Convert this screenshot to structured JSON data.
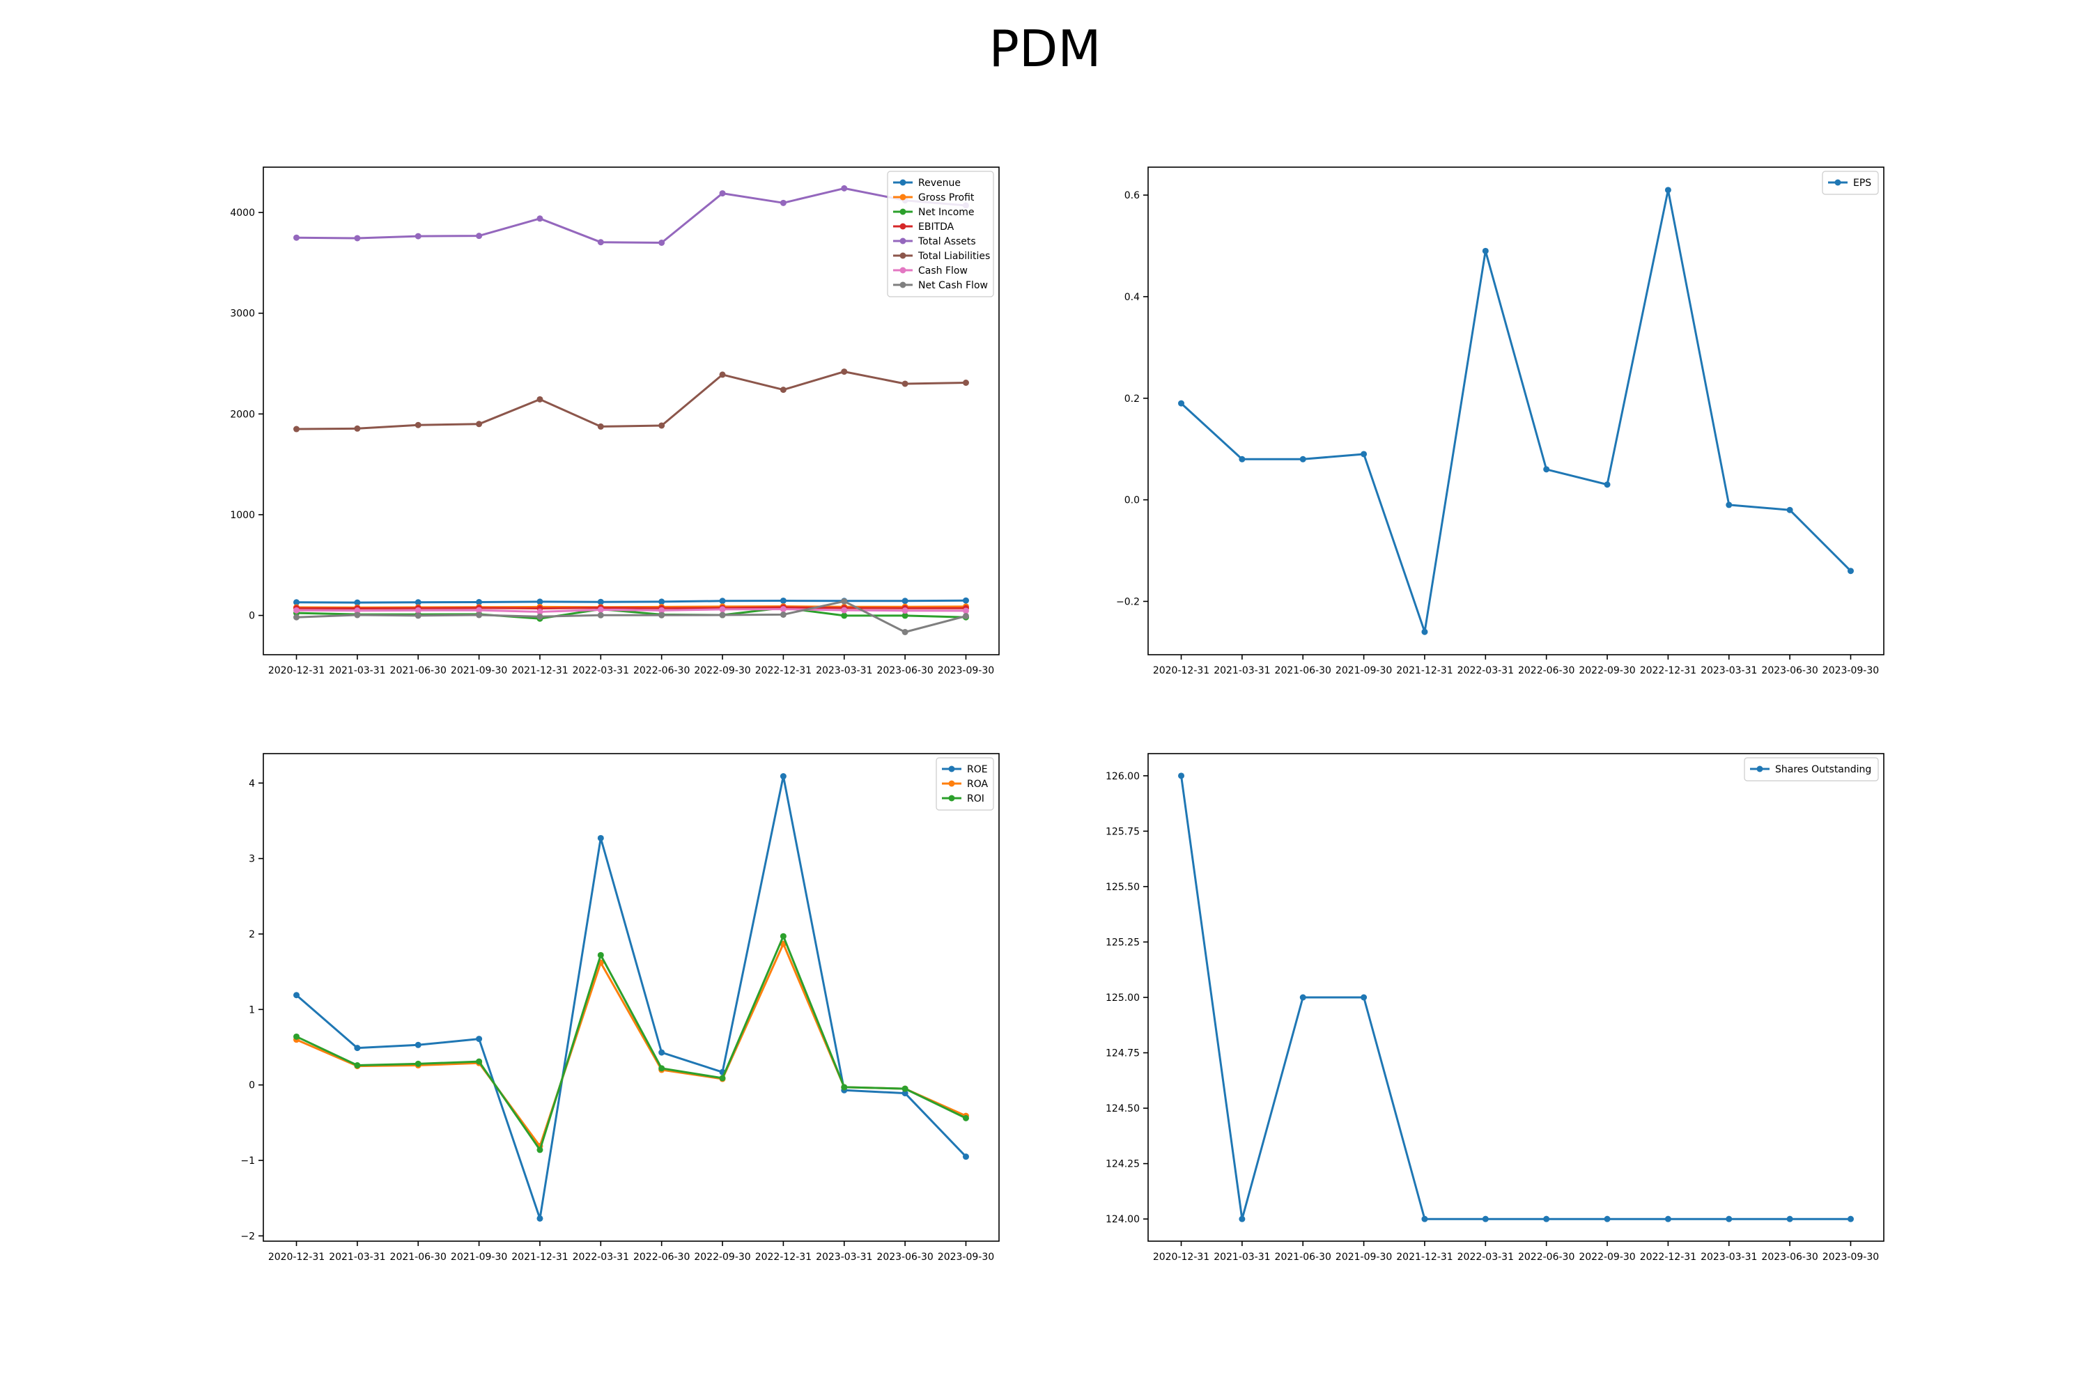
{
  "figure_title": "PDM",
  "chart_data": [
    {
      "type": "line",
      "x": [
        "2020-12-31",
        "2021-03-31",
        "2021-06-30",
        "2021-09-30",
        "2021-12-31",
        "2022-03-31",
        "2022-06-30",
        "2022-09-30",
        "2022-12-31",
        "2023-03-31",
        "2023-06-30",
        "2023-09-30"
      ],
      "ylim": [
        -390,
        4450
      ],
      "yticks": [
        0,
        1000,
        2000,
        3000,
        4000
      ],
      "ytick_labels": [
        "0",
        "1000",
        "2000",
        "3000",
        "4000"
      ],
      "legend_position": "top-right",
      "series": [
        {
          "name": "Revenue",
          "color": "#1f77b4",
          "values": [
            130,
            128,
            130,
            132,
            136,
            134,
            136,
            144,
            146,
            144,
            144,
            148
          ]
        },
        {
          "name": "Gross Profit",
          "color": "#ff7f0e",
          "values": [
            80,
            78,
            80,
            82,
            84,
            82,
            84,
            88,
            90,
            86,
            86,
            88
          ]
        },
        {
          "name": "Net Income",
          "color": "#2ca02c",
          "values": [
            24,
            10,
            10,
            12,
            -32,
            62,
            8,
            4,
            76,
            -2,
            -2,
            -18
          ]
        },
        {
          "name": "EBITDA",
          "color": "#d62728",
          "values": [
            72,
            70,
            72,
            74,
            70,
            76,
            72,
            74,
            80,
            74,
            72,
            72
          ]
        },
        {
          "name": "Total Assets",
          "color": "#9467bd",
          "values": [
            3750,
            3745,
            3765,
            3768,
            3940,
            3705,
            3700,
            4190,
            4095,
            4240,
            4120,
            4070
          ]
        },
        {
          "name": "Total Liabilities",
          "color": "#8c564b",
          "values": [
            1850,
            1855,
            1890,
            1900,
            2145,
            1875,
            1885,
            2390,
            2240,
            2420,
            2300,
            2310
          ]
        },
        {
          "name": "Cash Flow",
          "color": "#e377c2",
          "values": [
            50,
            48,
            50,
            52,
            36,
            56,
            50,
            60,
            62,
            52,
            48,
            46
          ]
        },
        {
          "name": "Net Cash Flow",
          "color": "#7f7f7f",
          "values": [
            -18,
            4,
            -2,
            4,
            -12,
            2,
            2,
            4,
            8,
            140,
            -165,
            -6
          ]
        }
      ]
    },
    {
      "type": "line",
      "x": [
        "2020-12-31",
        "2021-03-31",
        "2021-06-30",
        "2021-09-30",
        "2021-12-31",
        "2022-03-31",
        "2022-06-30",
        "2022-09-30",
        "2022-12-31",
        "2023-03-31",
        "2023-06-30",
        "2023-09-30"
      ],
      "ylim": [
        -0.305,
        0.655
      ],
      "yticks": [
        -0.2,
        0.0,
        0.2,
        0.4,
        0.6
      ],
      "ytick_labels": [
        "−0.2",
        "0.0",
        "0.2",
        "0.4",
        "0.6"
      ],
      "legend_position": "top-right",
      "series": [
        {
          "name": "EPS",
          "color": "#1f77b4",
          "values": [
            0.19,
            0.08,
            0.08,
            0.09,
            -0.26,
            0.49,
            0.06,
            0.03,
            0.61,
            -0.01,
            -0.02,
            -0.14
          ]
        }
      ]
    },
    {
      "type": "line",
      "x": [
        "2020-12-31",
        "2021-03-31",
        "2021-06-30",
        "2021-09-30",
        "2021-12-31",
        "2022-03-31",
        "2022-06-30",
        "2022-09-30",
        "2022-12-31",
        "2023-03-31",
        "2023-06-30",
        "2023-09-30"
      ],
      "ylim": [
        -2.07,
        4.39
      ],
      "yticks": [
        -2,
        -1,
        0,
        1,
        2,
        3,
        4
      ],
      "ytick_labels": [
        "−2",
        "−1",
        "0",
        "1",
        "2",
        "3",
        "4"
      ],
      "legend_position": "top-right",
      "series": [
        {
          "name": "ROE",
          "color": "#1f77b4",
          "values": [
            1.19,
            0.49,
            0.53,
            0.61,
            -1.77,
            3.27,
            0.43,
            0.17,
            4.09,
            -0.07,
            -0.11,
            -0.95
          ]
        },
        {
          "name": "ROA",
          "color": "#ff7f0e",
          "values": [
            0.6,
            0.25,
            0.26,
            0.29,
            -0.81,
            1.62,
            0.2,
            0.08,
            1.87,
            -0.03,
            -0.05,
            -0.41
          ]
        },
        {
          "name": "ROI",
          "color": "#2ca02c",
          "values": [
            0.64,
            0.26,
            0.28,
            0.31,
            -0.86,
            1.72,
            0.22,
            0.09,
            1.97,
            -0.03,
            -0.05,
            -0.44
          ]
        }
      ]
    },
    {
      "type": "line",
      "x": [
        "2020-12-31",
        "2021-03-31",
        "2021-06-30",
        "2021-09-30",
        "2021-12-31",
        "2022-03-31",
        "2022-06-30",
        "2022-09-30",
        "2022-12-31",
        "2023-03-31",
        "2023-06-30",
        "2023-09-30"
      ],
      "ylim": [
        123.9,
        126.1
      ],
      "yticks": [
        124.0,
        124.25,
        124.5,
        124.75,
        125.0,
        125.25,
        125.5,
        125.75,
        126.0
      ],
      "ytick_labels": [
        "124.00",
        "124.25",
        "124.50",
        "124.75",
        "125.00",
        "125.25",
        "125.50",
        "125.75",
        "126.00"
      ],
      "legend_position": "top-right",
      "series": [
        {
          "name": "Shares Outstanding",
          "color": "#1f77b4",
          "values": [
            126,
            124,
            125,
            125,
            124,
            124,
            124,
            124,
            124,
            124,
            124,
            124
          ]
        }
      ]
    }
  ]
}
